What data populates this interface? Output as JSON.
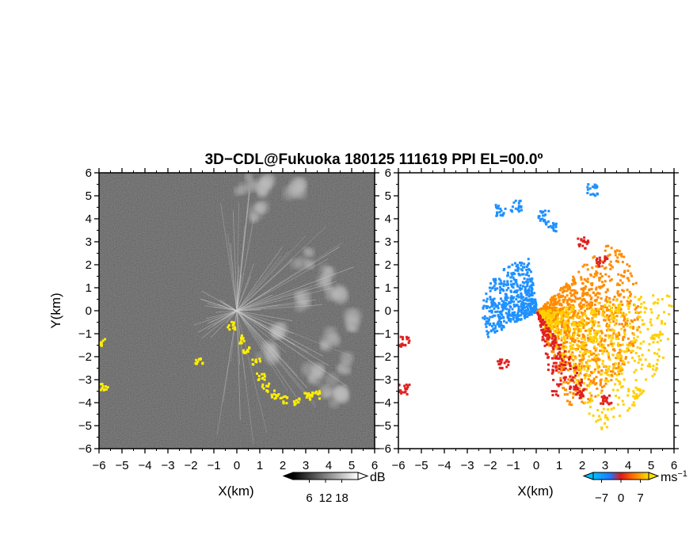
{
  "title": "3D−CDL@Fukuoka 180125 111619 PPI EL=00.0º",
  "chart_data": [
    {
      "type": "heatmap",
      "panel": "reflectivity",
      "xlabel": "X(km)",
      "ylabel": "Y(km)",
      "xlim": [
        -6,
        6
      ],
      "ylim": [
        -6,
        6
      ],
      "xticks": [
        "−6",
        "−5",
        "−4",
        "−3",
        "−2",
        "−1",
        "0",
        "1",
        "2",
        "3",
        "4",
        "5",
        "6"
      ],
      "yticks": [
        "6",
        "5",
        "4",
        "3",
        "2",
        "1",
        "0",
        "−1",
        "−2",
        "−3",
        "−4",
        "−5",
        "−6"
      ],
      "colorbar": {
        "unit": "dB",
        "ticks": [
          "6",
          "12",
          "18"
        ],
        "range": [
          0,
          24
        ]
      },
      "colors": {
        "background": "#1e1e1e",
        "clutter": "#ffee00"
      }
    },
    {
      "type": "heatmap",
      "panel": "doppler-velocity",
      "xlabel": "X(km)",
      "ylabel": "",
      "xlim": [
        -6,
        6
      ],
      "ylim": [
        -6,
        6
      ],
      "xticks": [
        "−6",
        "−5",
        "−4",
        "−3",
        "−2",
        "−1",
        "0",
        "1",
        "2",
        "3",
        "4",
        "5",
        "6"
      ],
      "yticks": [
        "6",
        "5",
        "4",
        "3",
        "2",
        "1",
        "0",
        "−1",
        "−2",
        "−3",
        "−4",
        "−5",
        "−6"
      ],
      "colorbar": {
        "unit": "ms",
        "unit_exponent": "−1",
        "ticks": [
          "−7",
          "0",
          "7"
        ],
        "range": [
          -10,
          10
        ]
      },
      "colors": {
        "negative": "#1e90ff",
        "zero": "#e02020",
        "positive": "#ff8c00",
        "high": "#ffd000"
      }
    }
  ]
}
